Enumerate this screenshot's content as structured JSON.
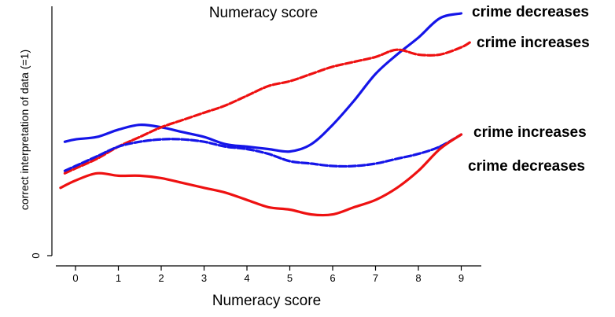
{
  "chart_data": {
    "type": "line",
    "title": "Numeracy score",
    "xlabel": "Numeracy score",
    "ylabel": "correct interpretation of data (=1)",
    "xlim": [
      -0.3,
      9.5
    ],
    "x_ticks": [
      0,
      1,
      2,
      3,
      4,
      5,
      6,
      7,
      8,
      9
    ],
    "ylim": [
      0,
      1.03
    ],
    "y_ticks": [
      0
    ],
    "grid": false,
    "colors": {
      "blue": "#1515e8",
      "red": "#ee1111"
    },
    "series": [
      {
        "name": "crime decreases",
        "label_color": "#1515e8",
        "color": "#1515e8",
        "dash": "solid",
        "x": [
          -0.25,
          0.0,
          0.5,
          1.0,
          1.5,
          2.0,
          2.5,
          3.0,
          3.5,
          4.0,
          4.5,
          5.0,
          5.5,
          6.0,
          6.5,
          7.0,
          7.5,
          8.0,
          8.5,
          9.0
        ],
        "y": [
          0.47,
          0.48,
          0.49,
          0.52,
          0.54,
          0.53,
          0.51,
          0.49,
          0.46,
          0.45,
          0.44,
          0.43,
          0.46,
          0.54,
          0.64,
          0.75,
          0.83,
          0.9,
          0.98,
          1.0
        ]
      },
      {
        "name": "crime increases",
        "label_color": "#ee1111",
        "color": "#ee1111",
        "dash": "dashed",
        "x": [
          -0.25,
          0.0,
          0.5,
          1.0,
          1.5,
          2.0,
          2.5,
          3.0,
          3.5,
          4.0,
          4.5,
          5.0,
          5.5,
          6.0,
          6.5,
          7.0,
          7.5,
          8.0,
          8.5,
          9.0,
          9.2
        ],
        "y": [
          0.34,
          0.36,
          0.4,
          0.45,
          0.49,
          0.53,
          0.56,
          0.59,
          0.62,
          0.66,
          0.7,
          0.72,
          0.75,
          0.78,
          0.8,
          0.82,
          0.85,
          0.83,
          0.83,
          0.86,
          0.88
        ]
      },
      {
        "name": "crime increases",
        "label_color": "#1515e8",
        "color": "#1515e8",
        "dash": "dashed",
        "x": [
          -0.25,
          0.0,
          0.5,
          1.0,
          1.5,
          2.0,
          2.5,
          3.0,
          3.5,
          4.0,
          4.5,
          5.0,
          5.5,
          6.0,
          6.5,
          7.0,
          7.5,
          8.0,
          8.5,
          9.0
        ],
        "y": [
          0.35,
          0.37,
          0.41,
          0.45,
          0.47,
          0.48,
          0.48,
          0.47,
          0.45,
          0.44,
          0.42,
          0.39,
          0.38,
          0.37,
          0.37,
          0.38,
          0.4,
          0.42,
          0.45,
          0.5
        ]
      },
      {
        "name": "crime decreases",
        "label_color": "#ee1111",
        "color": "#ee1111",
        "dash": "solid",
        "x": [
          -0.35,
          0.0,
          0.5,
          1.0,
          1.5,
          2.0,
          2.5,
          3.0,
          3.5,
          4.0,
          4.5,
          5.0,
          5.5,
          6.0,
          6.5,
          7.0,
          7.5,
          8.0,
          8.5,
          9.0
        ],
        "y": [
          0.28,
          0.31,
          0.34,
          0.33,
          0.33,
          0.32,
          0.3,
          0.28,
          0.26,
          0.23,
          0.2,
          0.19,
          0.17,
          0.17,
          0.2,
          0.23,
          0.28,
          0.35,
          0.44,
          0.5
        ]
      }
    ],
    "series_labels": [
      {
        "text": "crime decreases",
        "color": "#1515e8"
      },
      {
        "text": "crime increases",
        "color": "#ee1111"
      },
      {
        "text": "crime increases",
        "color": "#1515e8"
      },
      {
        "text": "crime decreases",
        "color": "#ee1111"
      }
    ]
  }
}
